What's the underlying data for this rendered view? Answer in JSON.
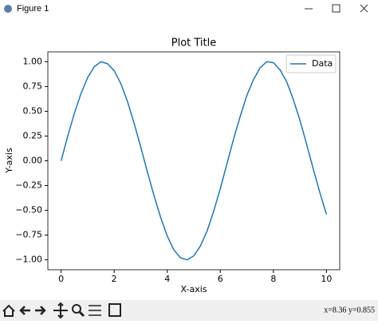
{
  "window": {
    "title": "Figure 1",
    "status": "x=8.36 y=0.855"
  },
  "chart_data": {
    "type": "line",
    "title": "Plot Title",
    "x_label": "X-axis",
    "y_label": "Y-axis",
    "x": [
      0,
      0.25,
      0.5,
      0.75,
      1,
      1.25,
      1.5,
      1.75,
      2,
      2.25,
      2.5,
      2.75,
      3,
      3.25,
      3.5,
      3.75,
      4,
      4.25,
      4.5,
      4.75,
      5,
      5.25,
      5.5,
      5.75,
      6,
      6.25,
      6.5,
      6.75,
      7,
      7.25,
      7.5,
      7.75,
      8,
      8.25,
      8.5,
      8.75,
      9,
      9.25,
      9.5,
      9.75,
      10
    ],
    "series": [
      {
        "name": "Data",
        "color": "#1f77b4",
        "values": [
          0,
          0.25,
          0.48,
          0.68,
          0.84,
          0.95,
          1.0,
          0.98,
          0.91,
          0.78,
          0.6,
          0.38,
          0.14,
          -0.11,
          -0.35,
          -0.57,
          -0.76,
          -0.9,
          -0.98,
          -1.0,
          -0.96,
          -0.86,
          -0.71,
          -0.51,
          -0.28,
          -0.03,
          0.22,
          0.45,
          0.66,
          0.82,
          0.94,
          1.0,
          0.99,
          0.92,
          0.8,
          0.62,
          0.41,
          0.17,
          -0.08,
          -0.32,
          -0.54
        ]
      }
    ],
    "xlim": [
      -0.5,
      10.5
    ],
    "ylim": [
      -1.1,
      1.1
    ],
    "xticks": [
      0,
      2,
      4,
      6,
      8,
      10
    ],
    "yticks": [
      {
        "value": -1,
        "label": "−1.00"
      },
      {
        "value": -0.75,
        "label": "−0.75"
      },
      {
        "value": -0.5,
        "label": "−0.50"
      },
      {
        "value": -0.25,
        "label": "−0.25"
      },
      {
        "value": 0,
        "label": "0.00"
      },
      {
        "value": 0.25,
        "label": "0.25"
      },
      {
        "value": 0.5,
        "label": "0.50"
      },
      {
        "value": 0.75,
        "label": "0.75"
      },
      {
        "value": 1,
        "label": "1.00"
      }
    ],
    "grid": false,
    "legend": "upper right"
  }
}
